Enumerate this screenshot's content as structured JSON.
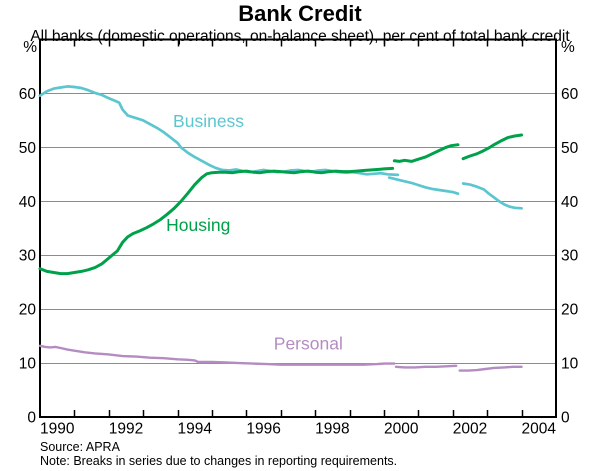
{
  "title": "Bank Credit",
  "subtitle": "All banks (domestic operations, on-balance sheet), per cent of total bank credit",
  "footer": {
    "source": "Source: APRA",
    "note": "Note: Breaks in series due to changes in reporting requirements."
  },
  "chart_data": {
    "type": "line",
    "title": "Bank Credit",
    "xlabel": "",
    "ylabel": "per cent of total bank credit",
    "x_range": [
      1990,
      2005
    ],
    "y_range": [
      0,
      70
    ],
    "grid": "horizontal",
    "gridline_values": [
      10,
      20,
      30,
      40,
      50,
      60
    ],
    "y_axis": {
      "unit_left": "%",
      "unit_right": "%",
      "label_values": [
        0,
        10,
        20,
        30,
        40,
        50,
        60
      ]
    },
    "x_axis": {
      "tick_years": [
        1991,
        1992,
        1993,
        1994,
        1995,
        1996,
        1997,
        1998,
        1999,
        2000,
        2001,
        2002,
        2003,
        2004
      ],
      "label_years": [
        1990,
        1992,
        1994,
        1996,
        1998,
        2000,
        2002,
        2004
      ]
    },
    "colors": {
      "business": "#5BC6CF",
      "housing": "#00A14B",
      "personal": "#B48CC2",
      "gridline": "#8C8C8C",
      "frame": "#000000"
    },
    "series": [
      {
        "id": "business",
        "name": "Business",
        "color": "#5BC6CF",
        "stroke_width": 2.7,
        "label_anchor": {
          "x": 1994.9,
          "y": 54.9
        },
        "segments": [
          [
            [
              1990,
              59.6
            ],
            [
              1990.2,
              60.4
            ],
            [
              1990.4,
              60.9
            ],
            [
              1990.6,
              61.1
            ],
            [
              1990.8,
              61.3
            ],
            [
              1991,
              61.2
            ],
            [
              1991.2,
              61.0
            ],
            [
              1991.4,
              60.6
            ],
            [
              1991.6,
              60.1
            ],
            [
              1991.8,
              59.7
            ],
            [
              1992,
              59.1
            ],
            [
              1992.15,
              58.7
            ],
            [
              1992.3,
              58.3
            ],
            [
              1992.4,
              57.0
            ],
            [
              1992.55,
              55.9
            ],
            [
              1992.8,
              55.4
            ],
            [
              1993,
              55.0
            ],
            [
              1993.2,
              54.3
            ],
            [
              1993.4,
              53.6
            ],
            [
              1993.6,
              52.8
            ],
            [
              1993.8,
              51.8
            ],
            [
              1994,
              50.8
            ],
            [
              1994.1,
              50.0
            ],
            [
              1994.3,
              49.0
            ],
            [
              1994.5,
              48.2
            ],
            [
              1994.7,
              47.5
            ],
            [
              1994.9,
              46.8
            ],
            [
              1995.1,
              46.2
            ],
            [
              1995.3,
              45.8
            ],
            [
              1995.5,
              45.7
            ],
            [
              1995.7,
              45.9
            ],
            [
              1995.9,
              45.6
            ],
            [
              1996.1,
              45.4
            ],
            [
              1996.3,
              45.6
            ],
            [
              1996.5,
              45.8
            ],
            [
              1996.7,
              45.6
            ],
            [
              1996.9,
              45.4
            ],
            [
              1997.1,
              45.5
            ],
            [
              1997.3,
              45.7
            ],
            [
              1997.5,
              45.8
            ],
            [
              1997.7,
              45.6
            ],
            [
              1997.9,
              45.5
            ],
            [
              1998.1,
              45.7
            ],
            [
              1998.3,
              45.8
            ],
            [
              1998.5,
              45.6
            ],
            [
              1998.7,
              45.4
            ],
            [
              1998.9,
              45.3
            ],
            [
              1999.1,
              45.4
            ],
            [
              1999.3,
              45.2
            ],
            [
              1999.5,
              45.0
            ],
            [
              1999.7,
              45.1
            ],
            [
              1999.9,
              45.2
            ],
            [
              2000.1,
              45.0
            ],
            [
              2000.4,
              44.9
            ]
          ],
          [
            [
              2000.15,
              44.4
            ],
            [
              2000.4,
              44.0
            ],
            [
              2000.6,
              43.7
            ],
            [
              2000.8,
              43.4
            ],
            [
              2001,
              43.0
            ],
            [
              2001.2,
              42.6
            ],
            [
              2001.4,
              42.3
            ],
            [
              2001.6,
              42.1
            ],
            [
              2001.8,
              41.9
            ],
            [
              2002,
              41.7
            ],
            [
              2002.15,
              41.4
            ]
          ],
          [
            [
              2002.3,
              43.3
            ],
            [
              2002.5,
              43.1
            ],
            [
              2002.7,
              42.7
            ],
            [
              2002.9,
              42.2
            ],
            [
              2003.05,
              41.4
            ],
            [
              2003.2,
              40.7
            ],
            [
              2003.35,
              40.0
            ],
            [
              2003.5,
              39.4
            ],
            [
              2003.65,
              39.0
            ],
            [
              2003.8,
              38.8
            ],
            [
              2004,
              38.7
            ]
          ]
        ]
      },
      {
        "id": "housing",
        "name": "Housing",
        "color": "#00A14B",
        "stroke_width": 3.0,
        "label_anchor": {
          "x": 1994.6,
          "y": 35.6
        },
        "segments": [
          [
            [
              1990,
              27.5
            ],
            [
              1990.2,
              27.0
            ],
            [
              1990.4,
              26.8
            ],
            [
              1990.6,
              26.6
            ],
            [
              1990.8,
              26.6
            ],
            [
              1991,
              26.8
            ],
            [
              1991.2,
              27.0
            ],
            [
              1991.4,
              27.3
            ],
            [
              1991.6,
              27.7
            ],
            [
              1991.8,
              28.4
            ],
            [
              1991.95,
              29.2
            ],
            [
              1992.1,
              30.0
            ],
            [
              1992.25,
              30.8
            ],
            [
              1992.4,
              32.4
            ],
            [
              1992.55,
              33.4
            ],
            [
              1992.7,
              34.0
            ],
            [
              1992.9,
              34.5
            ],
            [
              1993.1,
              35.1
            ],
            [
              1993.3,
              35.8
            ],
            [
              1993.5,
              36.6
            ],
            [
              1993.7,
              37.6
            ],
            [
              1993.9,
              38.7
            ],
            [
              1994.1,
              40.0
            ],
            [
              1994.3,
              41.5
            ],
            [
              1994.5,
              43.1
            ],
            [
              1994.7,
              44.4
            ],
            [
              1994.85,
              45.1
            ],
            [
              1995,
              45.3
            ],
            [
              1995.2,
              45.4
            ],
            [
              1995.4,
              45.4
            ],
            [
              1995.6,
              45.3
            ],
            [
              1995.8,
              45.5
            ],
            [
              1996,
              45.6
            ],
            [
              1996.2,
              45.4
            ],
            [
              1996.4,
              45.3
            ],
            [
              1996.6,
              45.5
            ],
            [
              1996.8,
              45.6
            ],
            [
              1997,
              45.5
            ],
            [
              1997.2,
              45.4
            ],
            [
              1997.4,
              45.3
            ],
            [
              1997.6,
              45.5
            ],
            [
              1997.8,
              45.6
            ],
            [
              1998,
              45.4
            ],
            [
              1998.2,
              45.3
            ],
            [
              1998.4,
              45.5
            ],
            [
              1998.6,
              45.6
            ],
            [
              1998.8,
              45.5
            ],
            [
              1999,
              45.5
            ],
            [
              1999.2,
              45.6
            ],
            [
              1999.4,
              45.7
            ],
            [
              1999.6,
              45.8
            ],
            [
              1999.8,
              45.9
            ],
            [
              2000,
              46.0
            ],
            [
              2000.25,
              46.1
            ]
          ],
          [
            [
              2000.3,
              47.5
            ],
            [
              2000.45,
              47.4
            ],
            [
              2000.6,
              47.6
            ],
            [
              2000.8,
              47.4
            ],
            [
              2001,
              47.8
            ],
            [
              2001.2,
              48.2
            ],
            [
              2001.4,
              48.8
            ],
            [
              2001.6,
              49.4
            ],
            [
              2001.8,
              50.0
            ],
            [
              2001.95,
              50.3
            ],
            [
              2002.15,
              50.5
            ]
          ],
          [
            [
              2002.3,
              47.9
            ],
            [
              2002.5,
              48.4
            ],
            [
              2002.7,
              48.8
            ],
            [
              2002.9,
              49.4
            ],
            [
              2003.05,
              49.9
            ],
            [
              2003.2,
              50.5
            ],
            [
              2003.4,
              51.2
            ],
            [
              2003.6,
              51.8
            ],
            [
              2003.8,
              52.1
            ],
            [
              2004,
              52.3
            ]
          ]
        ]
      },
      {
        "id": "personal",
        "name": "Personal",
        "color": "#B48CC2",
        "stroke_width": 2.4,
        "label_anchor": {
          "x": 1997.8,
          "y": 13.6
        },
        "segments": [
          [
            [
              1990,
              13.2
            ],
            [
              1990.15,
              13.0
            ],
            [
              1990.3,
              12.9
            ],
            [
              1990.45,
              13.0
            ],
            [
              1990.6,
              12.8
            ],
            [
              1990.8,
              12.5
            ],
            [
              1991,
              12.3
            ],
            [
              1991.3,
              12.0
            ],
            [
              1991.6,
              11.8
            ],
            [
              1992,
              11.6
            ],
            [
              1992.4,
              11.3
            ],
            [
              1992.8,
              11.2
            ],
            [
              1993.2,
              11.0
            ],
            [
              1993.6,
              10.9
            ],
            [
              1994,
              10.7
            ],
            [
              1994.3,
              10.6
            ],
            [
              1994.5,
              10.5
            ],
            [
              1994.6,
              10.2
            ],
            [
              1995,
              10.2
            ],
            [
              1995.4,
              10.1
            ],
            [
              1995.8,
              10.0
            ],
            [
              1996.2,
              9.9
            ],
            [
              1996.6,
              9.8
            ],
            [
              1997,
              9.7
            ],
            [
              1997.4,
              9.7
            ],
            [
              1997.8,
              9.7
            ],
            [
              1998.2,
              9.7
            ],
            [
              1998.6,
              9.7
            ],
            [
              1999,
              9.7
            ],
            [
              1999.4,
              9.7
            ],
            [
              1999.8,
              9.8
            ],
            [
              2000,
              9.9
            ],
            [
              2000.3,
              9.9
            ]
          ],
          [
            [
              2000.35,
              9.3
            ],
            [
              2000.6,
              9.2
            ],
            [
              2000.9,
              9.2
            ],
            [
              2001.2,
              9.3
            ],
            [
              2001.5,
              9.3
            ],
            [
              2001.8,
              9.4
            ],
            [
              2002.1,
              9.5
            ]
          ],
          [
            [
              2002.2,
              8.6
            ],
            [
              2002.45,
              8.6
            ],
            [
              2002.7,
              8.7
            ],
            [
              2002.95,
              8.9
            ],
            [
              2003.2,
              9.1
            ],
            [
              2003.5,
              9.2
            ],
            [
              2003.75,
              9.3
            ],
            [
              2004,
              9.3
            ]
          ]
        ]
      }
    ]
  }
}
